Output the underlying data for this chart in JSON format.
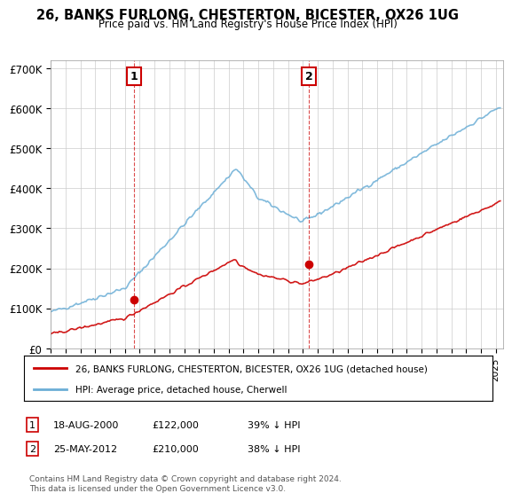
{
  "title": "26, BANKS FURLONG, CHESTERTON, BICESTER, OX26 1UG",
  "subtitle": "Price paid vs. HM Land Registry's House Price Index (HPI)",
  "ylabel_ticks": [
    "£0",
    "£100K",
    "£200K",
    "£300K",
    "£400K",
    "£500K",
    "£600K",
    "£700K"
  ],
  "ytick_values": [
    0,
    100000,
    200000,
    300000,
    400000,
    500000,
    600000,
    700000
  ],
  "ylim": [
    0,
    720000
  ],
  "xlim_start": 1995.0,
  "xlim_end": 2025.5,
  "sale1_year": 2000.63,
  "sale1_price": 122000,
  "sale1_label": "1",
  "sale2_year": 2012.4,
  "sale2_price": 210000,
  "sale2_label": "2",
  "vline1_year": 2000.63,
  "vline2_year": 2012.4,
  "hpi_color": "#6baed6",
  "price_color": "#cc0000",
  "vline_color": "#cc0000",
  "marker_color": "#cc0000",
  "annotation_box_color": "#cc0000",
  "legend_label_price": "26, BANKS FURLONG, CHESTERTON, BICESTER, OX26 1UG (detached house)",
  "legend_label_hpi": "HPI: Average price, detached house, Cherwell",
  "table_row1": "1    18-AUG-2000    £122,000    39% ↓ HPI",
  "table_row2": "2    25-MAY-2012    £210,000    38% ↓ HPI",
  "footer": "Contains HM Land Registry data © Crown copyright and database right 2024.\nThis data is licensed under the Open Government Licence v3.0.",
  "background_color": "#ffffff",
  "grid_color": "#cccccc"
}
